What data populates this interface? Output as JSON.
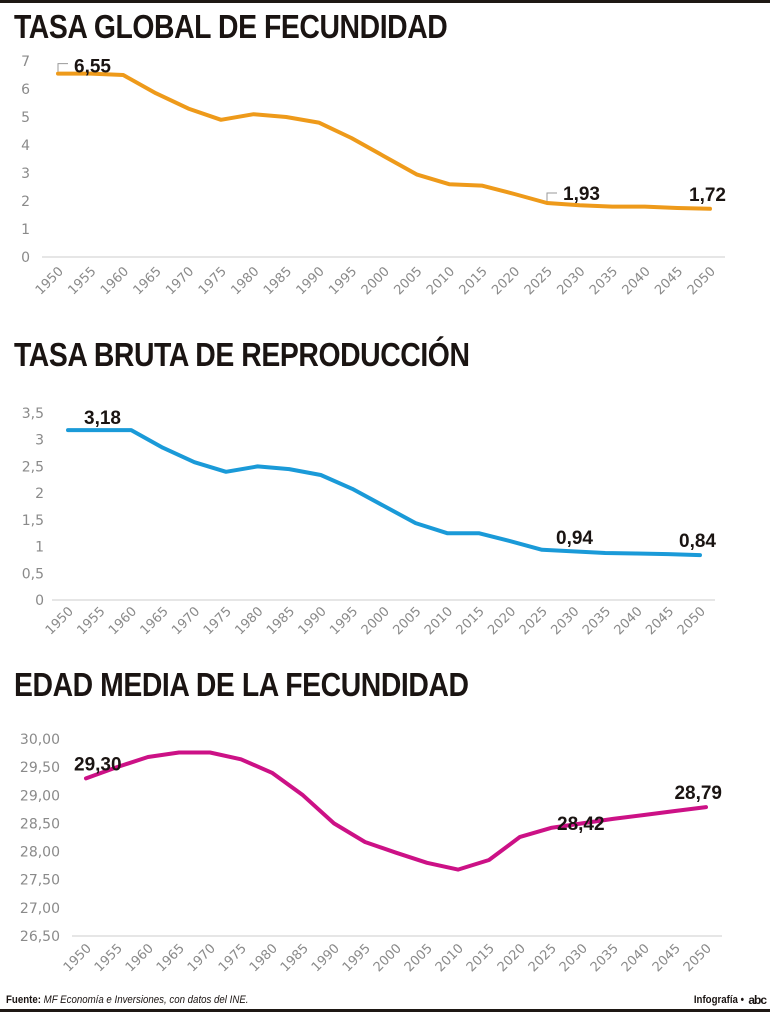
{
  "chart_data": [
    {
      "type": "line",
      "id": "tgf",
      "title": "TASA GLOBAL DE FECUNDIDAD",
      "color": "#ee9a1a",
      "x": [
        1950,
        1955,
        1960,
        1965,
        1970,
        1975,
        1980,
        1985,
        1990,
        1995,
        2000,
        2005,
        2010,
        2015,
        2020,
        2025,
        2030,
        2035,
        2040,
        2045,
        2050
      ],
      "values": [
        6.55,
        6.55,
        6.5,
        5.85,
        5.3,
        4.9,
        5.1,
        5.0,
        4.8,
        4.25,
        3.6,
        2.95,
        2.6,
        2.55,
        2.25,
        1.93,
        1.85,
        1.8,
        1.8,
        1.75,
        1.72
      ],
      "yticks": [
        "0",
        "1",
        "2",
        "3",
        "4",
        "5",
        "6",
        "7"
      ],
      "ytick_values": [
        0,
        1,
        2,
        3,
        4,
        5,
        6,
        7
      ],
      "ylim": [
        0,
        7
      ],
      "xlabel": "",
      "ylabel": "",
      "grid": false,
      "annotations": [
        {
          "x": 1950,
          "label": "6,55",
          "leader": true
        },
        {
          "x": 2025,
          "label": "1,93",
          "leader": true
        },
        {
          "x": 2050,
          "label": "1,72",
          "leader": false
        }
      ]
    },
    {
      "type": "line",
      "id": "tbr",
      "title": "TASA BRUTA DE REPRODUCCIÓN",
      "color": "#1a9ad8",
      "x": [
        1950,
        1955,
        1960,
        1965,
        1970,
        1975,
        1980,
        1985,
        1990,
        1995,
        2000,
        2005,
        2010,
        2015,
        2020,
        2025,
        2030,
        2035,
        2040,
        2045,
        2050
      ],
      "values": [
        3.18,
        3.18,
        3.18,
        2.85,
        2.58,
        2.4,
        2.5,
        2.45,
        2.34,
        2.08,
        1.76,
        1.44,
        1.25,
        1.25,
        1.1,
        0.94,
        0.91,
        0.88,
        0.87,
        0.86,
        0.84
      ],
      "yticks": [
        "0",
        "0,5",
        "1",
        "1,5",
        "2",
        "2,5",
        "3",
        "3,5"
      ],
      "ytick_values": [
        0,
        0.5,
        1,
        1.5,
        2,
        2.5,
        3,
        3.5
      ],
      "ylim": [
        0,
        3.5
      ],
      "xlabel": "",
      "ylabel": "",
      "grid": false,
      "annotations": [
        {
          "x": 1950,
          "label": "3,18",
          "leader": false
        },
        {
          "x": 2025,
          "label": "0,94",
          "leader": false
        },
        {
          "x": 2050,
          "label": "0,84",
          "leader": false
        }
      ]
    },
    {
      "type": "line",
      "id": "emf",
      "title": "EDAD MEDIA DE LA FECUNDIDAD",
      "color": "#cc1186",
      "x": [
        1950,
        1955,
        1960,
        1965,
        1970,
        1975,
        1980,
        1985,
        1990,
        1995,
        2000,
        2005,
        2010,
        2015,
        2020,
        2025,
        2030,
        2035,
        2040,
        2045,
        2050
      ],
      "values": [
        29.3,
        29.5,
        29.68,
        29.76,
        29.76,
        29.64,
        29.4,
        29.0,
        28.5,
        28.17,
        27.98,
        27.8,
        27.68,
        27.85,
        28.26,
        28.42,
        28.5,
        28.58,
        28.65,
        28.72,
        28.79
      ],
      "yticks": [
        "26,50",
        "27,00",
        "27,50",
        "28,00",
        "28,50",
        "29,00",
        "29,50",
        "30,00"
      ],
      "ytick_values": [
        26.5,
        27,
        27.5,
        28,
        28.5,
        29,
        29.5,
        30
      ],
      "ylim": [
        26.5,
        30
      ],
      "xlabel": "",
      "ylabel": "",
      "grid": false,
      "annotations": [
        {
          "x": 1950,
          "label": "29,30",
          "leader": false
        },
        {
          "x": 2025,
          "label": "28,42",
          "leader": false
        },
        {
          "x": 2050,
          "label": "28,79",
          "leader": false
        }
      ]
    }
  ],
  "footer": {
    "source_label": "Fuente:",
    "source_text": "MF Economía e Inversiones, con datos del INE.",
    "credit": "Infografía •",
    "logo": "abc"
  },
  "style": {
    "axis_text_color": "#8a8a8a",
    "baseline_color": "#d8d8d8",
    "label_color": "#1a1412"
  }
}
